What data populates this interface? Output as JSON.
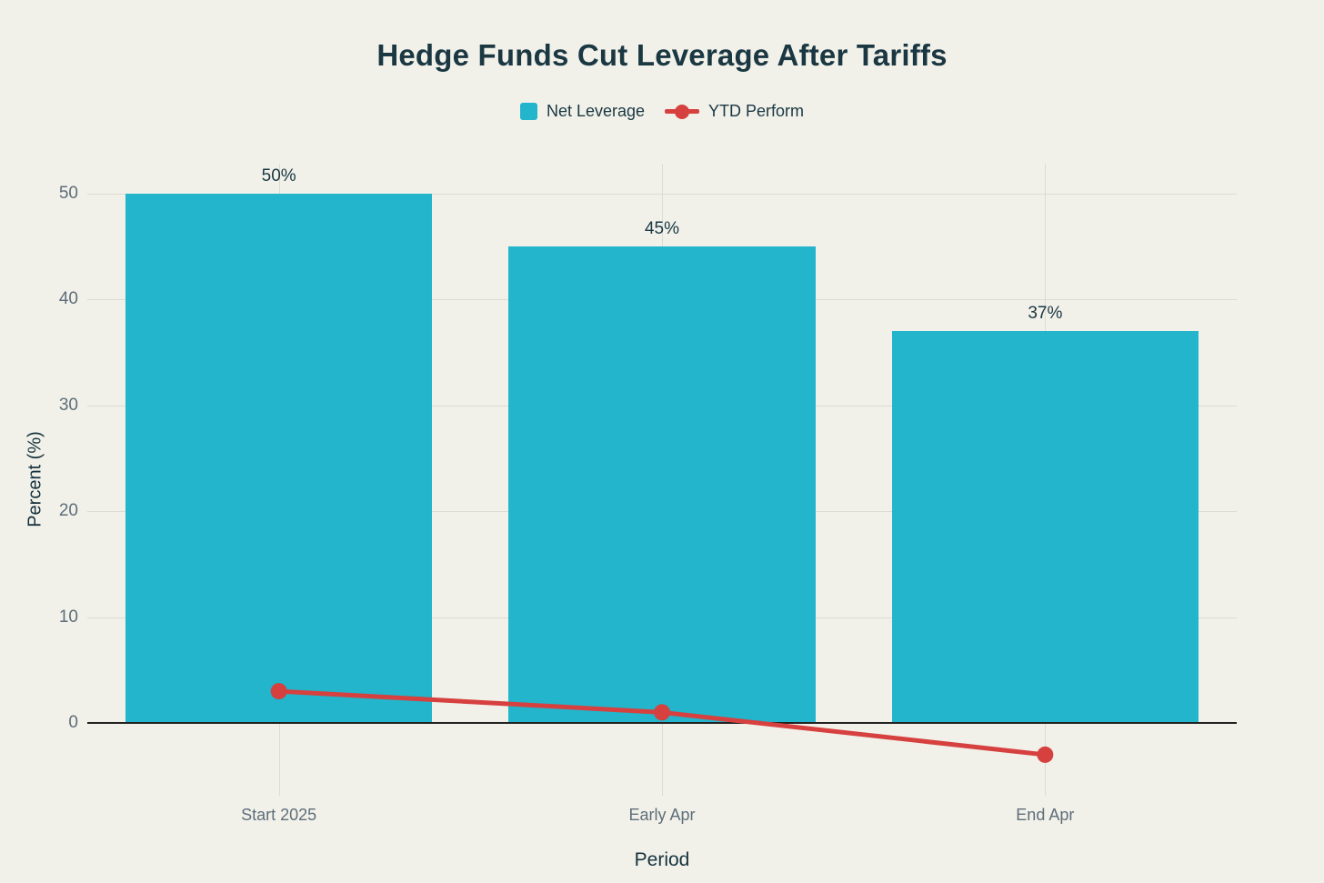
{
  "title": "Hedge Funds Cut Leverage After Tariffs",
  "legend": {
    "items": [
      {
        "label": "Net Leverage",
        "marker": "square",
        "color": "#22b5cc"
      },
      {
        "label": "YTD Perform",
        "marker": "line-dot",
        "color": "#d6413f"
      }
    ],
    "position": "top"
  },
  "axes": {
    "x_title": "Period",
    "y_title": "Percent (%)"
  },
  "colors": {
    "background": "#f1f1ea",
    "bar": "#22b5cc",
    "line": "#d6413f",
    "dark_text": "#1a3742",
    "tick_text": "#5f6e79",
    "gridline": "#dcdcd4",
    "axis_line": "#222222"
  },
  "chart_data": {
    "type": "bar",
    "title": "Hedge Funds Cut Leverage After Tariffs",
    "xlabel": "Period",
    "ylabel": "Percent (%)",
    "categories": [
      "Start 2025",
      "Early Apr",
      "End Apr"
    ],
    "series": [
      {
        "name": "Net Leverage",
        "type": "bar",
        "color": "#22b5cc",
        "values": [
          50,
          45,
          37
        ],
        "value_labels": [
          "50%",
          "45%",
          "37%"
        ]
      },
      {
        "name": "YTD Perform",
        "type": "line",
        "color": "#d6413f",
        "values": [
          3,
          1,
          -3
        ]
      }
    ],
    "yticks": [
      0,
      10,
      20,
      30,
      40,
      50
    ],
    "ylim": [
      -7,
      52
    ],
    "grid": true,
    "legend_position": "top"
  }
}
